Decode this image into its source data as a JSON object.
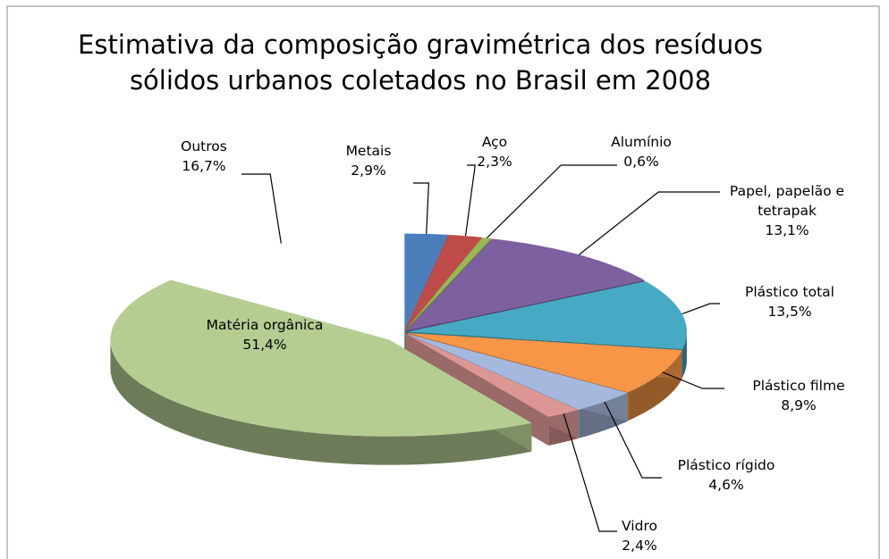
{
  "chart_data": {
    "type": "pie",
    "title": [
      "Estimativa da composição gravimétrica dos resíduos",
      "sólidos urbanos coletados no Brasil em 2008"
    ],
    "categories": [
      "Metais",
      "Aço",
      "Alumínio",
      "Papel, papelão e tetrapak",
      "Plástico total",
      "Plástico filme",
      "Plástico rígido",
      "Vidro",
      "Matéria orgânica",
      "Outros"
    ],
    "values": [
      2.9,
      2.3,
      0.6,
      13.1,
      13.5,
      8.9,
      4.6,
      2.4,
      51.4,
      16.7
    ],
    "value_labels": [
      "2,9%",
      "2,3%",
      "0,6%",
      "13,1%",
      "13,5%",
      "8,9%",
      "4,6%",
      "2,4%",
      "51,4%",
      "16,7%"
    ],
    "colors": [
      "#4a7ebb",
      "#be4b48",
      "#98b954",
      "#7d60a0",
      "#46aac5",
      "#f79646",
      "#a5b8de",
      "#dc9795",
      "#b6cd92",
      "none"
    ]
  }
}
